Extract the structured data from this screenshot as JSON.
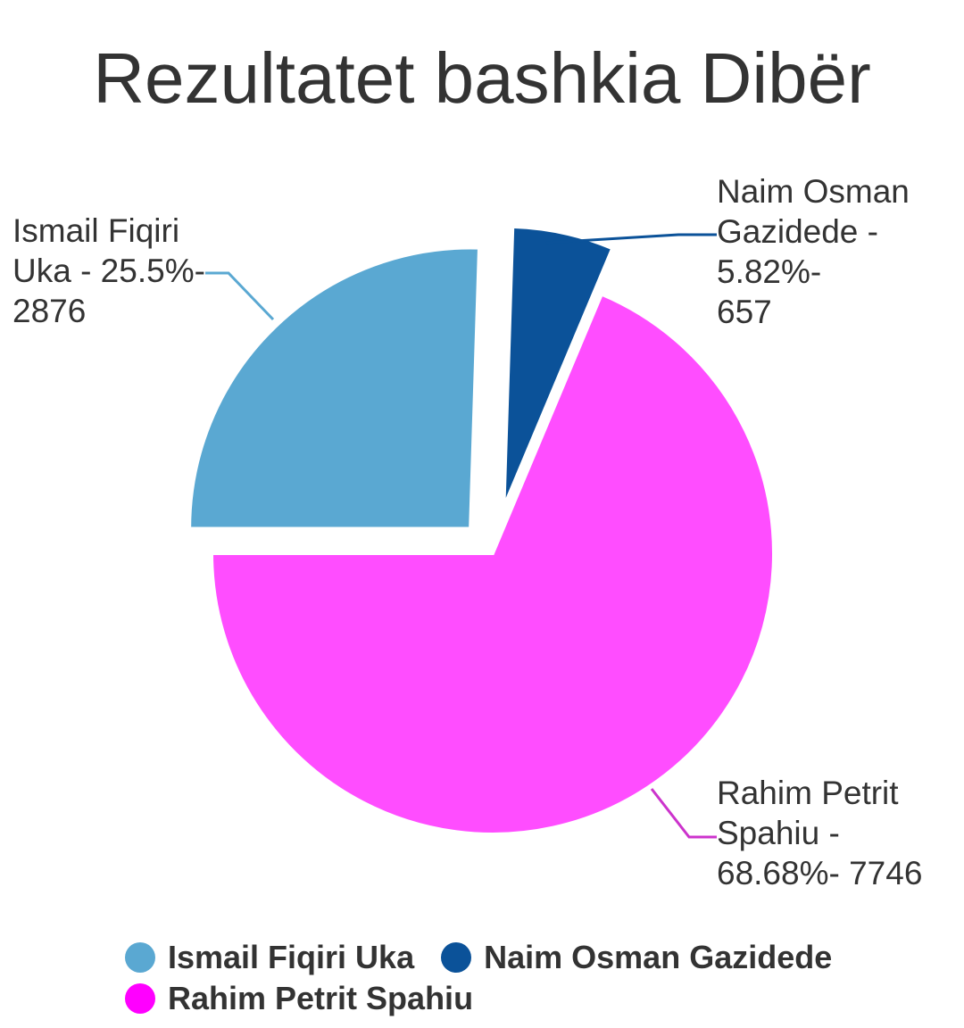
{
  "chart_data": {
    "type": "pie",
    "title": "Rezultatet bashkia Dibër",
    "categories": [
      "Ismail Fiqiri Uka",
      "Naim Osman Gazidede",
      "Rahim Petrit Spahiu"
    ],
    "percentages": [
      25.5,
      5.82,
      68.68
    ],
    "values": [
      2876,
      657,
      7746
    ],
    "colors": [
      "#5aa8d2",
      "#0b5299",
      "#ff4dff"
    ],
    "slice_labels": [
      "Ismail Fiqiri\nUka - 25.5%-\n2876",
      "Naim Osman\nGazidede - 5.82%-\n657",
      "Rahim Petrit\nSpahiu -\n68.68%- 7746"
    ],
    "legend": {
      "placement": "bottom",
      "items": [
        {
          "label": "Ismail Fiqiri Uka",
          "color": "#5aa8d2"
        },
        {
          "label": "Naim Osman Gazidede",
          "color": "#0b5299"
        },
        {
          "label": "Rahim Petrit Spahiu",
          "color": "#ff00ff"
        }
      ]
    }
  }
}
